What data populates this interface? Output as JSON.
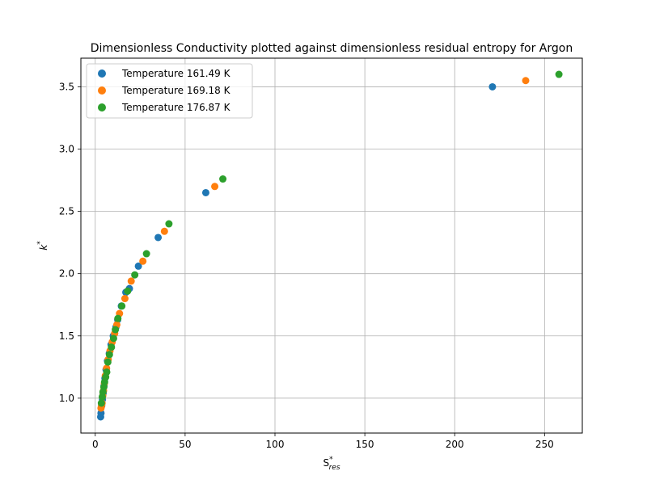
{
  "chart_data": {
    "type": "scatter",
    "title": "Dimensionless Conductivity plotted against dimensionless residual entropy for Argon",
    "xlabel": {
      "main": "S",
      "sup": "*",
      "sub": "res"
    },
    "ylabel": {
      "main": "k",
      "sup": "*"
    },
    "xlim": [
      -8,
      271
    ],
    "ylim": [
      0.72,
      3.73
    ],
    "xticks": [
      0,
      50,
      100,
      150,
      200,
      250
    ],
    "yticks": [
      1.0,
      1.5,
      2.0,
      2.5,
      3.0,
      3.5
    ],
    "xtick_labels": [
      "0",
      "50",
      "100",
      "150",
      "200",
      "250"
    ],
    "ytick_labels": [
      "1.0",
      "1.5",
      "2.0",
      "2.5",
      "3.0",
      "3.5"
    ],
    "grid": true,
    "legend_position": "top-left",
    "series": [
      {
        "name": "Temperature 161.49 K",
        "color": "#1f77b4",
        "points": [
          [
            3.0,
            0.85
          ],
          [
            3.2,
            0.88
          ],
          [
            3.6,
            0.94
          ],
          [
            4.0,
            0.99
          ],
          [
            4.4,
            1.04
          ],
          [
            4.9,
            1.1
          ],
          [
            5.4,
            1.16
          ],
          [
            6.0,
            1.23
          ],
          [
            6.8,
            1.3
          ],
          [
            7.8,
            1.36
          ],
          [
            8.8,
            1.43
          ],
          [
            10.0,
            1.5
          ],
          [
            11.5,
            1.57
          ],
          [
            12.5,
            1.63
          ],
          [
            14.5,
            1.74
          ],
          [
            17.0,
            1.85
          ],
          [
            19.0,
            1.88
          ],
          [
            24.0,
            2.06
          ],
          [
            35.0,
            2.29
          ],
          [
            61.5,
            2.65
          ],
          [
            221.0,
            3.5
          ]
        ]
      },
      {
        "name": "Temperature 169.18 K",
        "color": "#ff7f0e",
        "points": [
          [
            3.2,
            0.92
          ],
          [
            3.5,
            0.94
          ],
          [
            3.8,
            0.96
          ],
          [
            4.2,
            1.02
          ],
          [
            4.6,
            1.06
          ],
          [
            5.1,
            1.12
          ],
          [
            5.6,
            1.18
          ],
          [
            6.3,
            1.24
          ],
          [
            7.2,
            1.31
          ],
          [
            8.2,
            1.38
          ],
          [
            9.4,
            1.45
          ],
          [
            10.8,
            1.52
          ],
          [
            12.0,
            1.59
          ],
          [
            13.5,
            1.68
          ],
          [
            16.5,
            1.8
          ],
          [
            20.0,
            1.94
          ],
          [
            26.5,
            2.1
          ],
          [
            38.5,
            2.34
          ],
          [
            66.5,
            2.7
          ],
          [
            239.5,
            3.55
          ]
        ]
      },
      {
        "name": "Temperature 176.87 K",
        "color": "#2ca02c",
        "points": [
          [
            3.4,
            0.96
          ],
          [
            3.9,
            1.01
          ],
          [
            4.3,
            1.05
          ],
          [
            4.8,
            1.09
          ],
          [
            5.2,
            1.13
          ],
          [
            5.8,
            1.17
          ],
          [
            6.4,
            1.21
          ],
          [
            7.0,
            1.29
          ],
          [
            7.9,
            1.35
          ],
          [
            9.0,
            1.41
          ],
          [
            10.2,
            1.48
          ],
          [
            11.2,
            1.55
          ],
          [
            12.6,
            1.64
          ],
          [
            14.8,
            1.74
          ],
          [
            18.0,
            1.86
          ],
          [
            22.0,
            1.99
          ],
          [
            28.5,
            2.16
          ],
          [
            41.0,
            2.4
          ],
          [
            71.0,
            2.76
          ],
          [
            258.0,
            3.6
          ]
        ]
      }
    ]
  }
}
